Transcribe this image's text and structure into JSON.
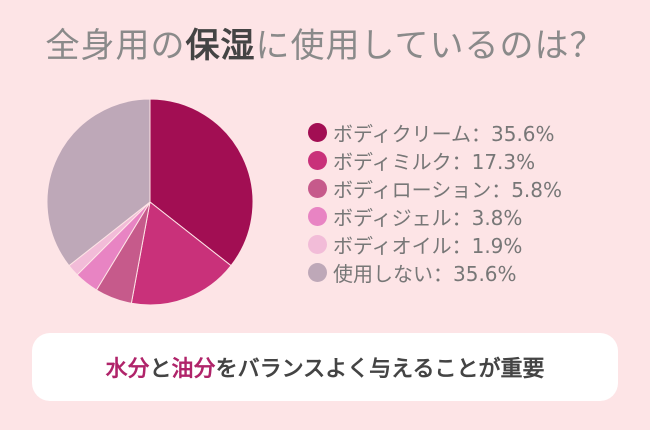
{
  "title": {
    "prefix": "全身用の",
    "highlight": "保湿",
    "suffix": "に使用しているのは？"
  },
  "chart_data": {
    "type": "pie",
    "title": "全身用の保湿に使用しているのは？",
    "slices": [
      {
        "label": "ボディクリーム",
        "value": 35.6,
        "display": "ボディクリーム：35.6%",
        "color": "#a20e53"
      },
      {
        "label": "ボディミルク",
        "value": 17.3,
        "display": "ボディミルク：17.3%",
        "color": "#c9317a"
      },
      {
        "label": "ボディローション",
        "value": 5.8,
        "display": "ボディローション：5.8%",
        "color": "#c65a8b"
      },
      {
        "label": "ボディジェル",
        "value": 3.8,
        "display": "ボディジェル：3.8%",
        "color": "#e884c3"
      },
      {
        "label": "ボディオイル",
        "value": 1.9,
        "display": "ボディオイル：1.9%",
        "color": "#f2bcd8"
      },
      {
        "label": "使用しない",
        "value": 35.6,
        "display": "使用しない：35.6%",
        "color": "#bea8b8"
      }
    ],
    "start": "12 o'clock",
    "direction": "clockwise",
    "legend_position": "right"
  },
  "banner": {
    "part1": "水分",
    "part2": "と",
    "part3": "油分",
    "part4": "をバランスよく与えることが重要"
  },
  "colors": {
    "background": "#fde4e6",
    "accent": "#b0246a",
    "banner_bg": "#ffffff"
  }
}
